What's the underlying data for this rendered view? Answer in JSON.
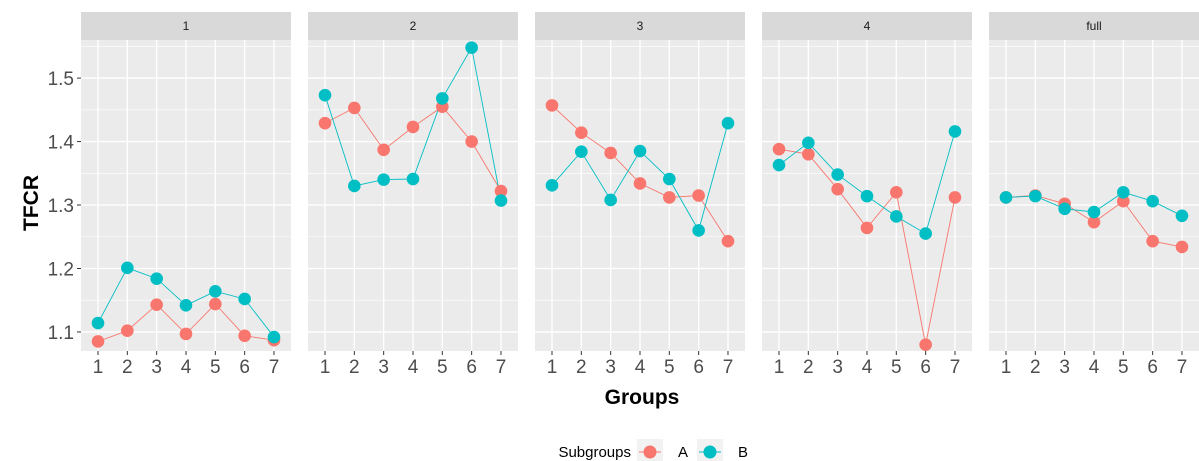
{
  "chart_data": {
    "type": "line",
    "facet_labels": [
      "1",
      "2",
      "3",
      "4",
      "full"
    ],
    "x": [
      1,
      2,
      3,
      4,
      5,
      6,
      7
    ],
    "xlabel": "Groups",
    "ylabel": "TFCR",
    "ylim": [
      1.07,
      1.56
    ],
    "y_ticks": [
      1.1,
      1.2,
      1.3,
      1.4,
      1.5
    ],
    "y_tick_labels": [
      "1.1",
      "1.2",
      "1.3",
      "1.4",
      "1.5"
    ],
    "x_tick_labels": [
      "1",
      "2",
      "3",
      "4",
      "5",
      "6",
      "7"
    ],
    "legend": {
      "title": "Subgroups",
      "position": "bottom"
    },
    "colors": {
      "A": "#F8766D",
      "B": "#00BFC4"
    },
    "panel_background": "#EBEBEB",
    "strip_background": "#D9D9D9",
    "grid": true,
    "series": [
      {
        "name": "A",
        "color": "#F8766D",
        "panels": [
          [
            1.085,
            1.102,
            1.143,
            1.097,
            1.144,
            1.094,
            1.087
          ],
          [
            1.429,
            1.453,
            1.387,
            1.423,
            1.455,
            1.4,
            1.322
          ],
          [
            1.457,
            1.414,
            1.382,
            1.334,
            1.312,
            1.315,
            1.243
          ],
          [
            1.388,
            1.38,
            1.325,
            1.264,
            1.32,
            1.08,
            1.312
          ],
          [
            1.312,
            1.315,
            1.302,
            1.273,
            1.306,
            1.243,
            1.234
          ]
        ]
      },
      {
        "name": "B",
        "color": "#00BFC4",
        "panels": [
          [
            1.114,
            1.201,
            1.184,
            1.142,
            1.164,
            1.152,
            1.092
          ],
          [
            1.473,
            1.33,
            1.34,
            1.341,
            1.468,
            1.548,
            1.307
          ],
          [
            1.331,
            1.384,
            1.308,
            1.385,
            1.341,
            1.26,
            1.429
          ],
          [
            1.363,
            1.398,
            1.348,
            1.314,
            1.282,
            1.255,
            1.416
          ],
          [
            1.312,
            1.314,
            1.294,
            1.289,
            1.32,
            1.306,
            1.283
          ]
        ]
      }
    ]
  }
}
